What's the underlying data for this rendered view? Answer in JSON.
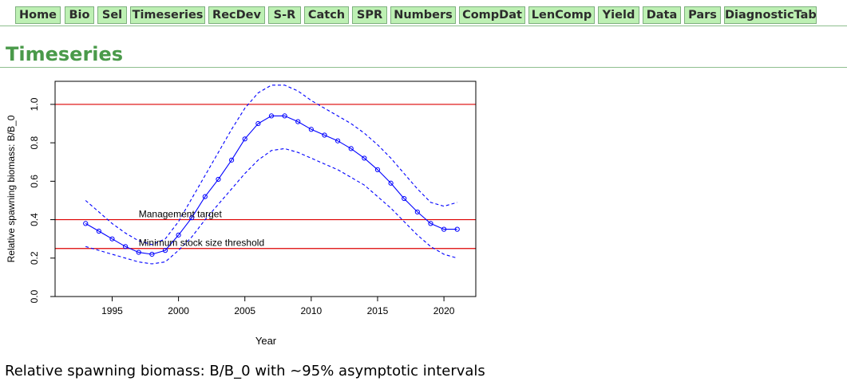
{
  "nav": {
    "tabs": [
      {
        "id": "home",
        "label": "Home"
      },
      {
        "id": "bio",
        "label": "Bio"
      },
      {
        "id": "sel",
        "label": "Sel"
      },
      {
        "id": "timeseries",
        "label": "Timeseries"
      },
      {
        "id": "recdev",
        "label": "RecDev"
      },
      {
        "id": "s-r",
        "label": "S-R"
      },
      {
        "id": "catch",
        "label": "Catch"
      },
      {
        "id": "spr",
        "label": "SPR"
      },
      {
        "id": "numbers",
        "label": "Numbers"
      },
      {
        "id": "compdat",
        "label": "CompDat"
      },
      {
        "id": "lencomp",
        "label": "LenComp"
      },
      {
        "id": "yield",
        "label": "Yield"
      },
      {
        "id": "data",
        "label": "Data"
      },
      {
        "id": "pars",
        "label": "Pars"
      },
      {
        "id": "diagnostictables",
        "label": "DiagnosticTables"
      }
    ]
  },
  "page": {
    "title": "Timeseries",
    "caption": "Relative spawning biomass: B/B_0 with ~95% asymptotic intervals"
  },
  "chart_data": {
    "type": "line",
    "xlabel": "Year",
    "ylabel": "Relative spawning biomass: B/B_0",
    "xlim": [
      1990.7,
      2022.4
    ],
    "ylim": [
      0,
      1.12
    ],
    "x_ticks": [
      1995,
      2000,
      2005,
      2010,
      2015,
      2020
    ],
    "y_ticks": [
      0.0,
      0.2,
      0.4,
      0.6,
      0.8,
      1.0
    ],
    "x_tick_labels": [
      "1995",
      "2000",
      "2005",
      "2010",
      "2015",
      "2020"
    ],
    "y_tick_labels": [
      "0.0",
      "0.2",
      "0.4",
      "0.6",
      "0.8",
      "1.0"
    ],
    "grid": false,
    "x": [
      1993,
      1994,
      1995,
      1996,
      1997,
      1998,
      1999,
      2000,
      2001,
      2002,
      2003,
      2004,
      2005,
      2006,
      2007,
      2008,
      2009,
      2010,
      2011,
      2012,
      2013,
      2014,
      2015,
      2016,
      2017,
      2018,
      2019,
      2020,
      2021
    ],
    "series": [
      {
        "role": "estimate",
        "color": "#0000ff",
        "style": "solid-with-circles",
        "values": [
          0.38,
          0.34,
          0.3,
          0.26,
          0.23,
          0.22,
          0.24,
          0.32,
          0.41,
          0.52,
          0.61,
          0.71,
          0.82,
          0.9,
          0.94,
          0.94,
          0.91,
          0.87,
          0.84,
          0.81,
          0.77,
          0.72,
          0.66,
          0.59,
          0.51,
          0.44,
          0.38,
          0.35,
          0.35
        ]
      },
      {
        "role": "upper-interval",
        "color": "#0000ff",
        "style": "dashed",
        "values": [
          0.5,
          0.44,
          0.38,
          0.33,
          0.29,
          0.27,
          0.3,
          0.39,
          0.51,
          0.63,
          0.75,
          0.87,
          0.98,
          1.06,
          1.1,
          1.1,
          1.07,
          1.02,
          0.98,
          0.94,
          0.9,
          0.85,
          0.79,
          0.72,
          0.64,
          0.56,
          0.49,
          0.47,
          0.49
        ]
      },
      {
        "role": "lower-interval",
        "color": "#0000ff",
        "style": "dashed",
        "values": [
          0.26,
          0.24,
          0.22,
          0.2,
          0.18,
          0.17,
          0.18,
          0.24,
          0.31,
          0.4,
          0.48,
          0.56,
          0.64,
          0.71,
          0.76,
          0.77,
          0.75,
          0.72,
          0.69,
          0.66,
          0.62,
          0.58,
          0.52,
          0.46,
          0.39,
          0.32,
          0.26,
          0.22,
          0.2
        ]
      }
    ],
    "reference_lines": [
      {
        "id": "unfished",
        "y": 1.0,
        "label": "",
        "color": "#dd0000"
      },
      {
        "id": "management-target",
        "y": 0.4,
        "label": "Management target",
        "color": "#dd0000"
      },
      {
        "id": "minimum-stock-size-threshold",
        "y": 0.25,
        "label": "Minimum stock size threshold",
        "color": "#dd0000"
      }
    ]
  }
}
